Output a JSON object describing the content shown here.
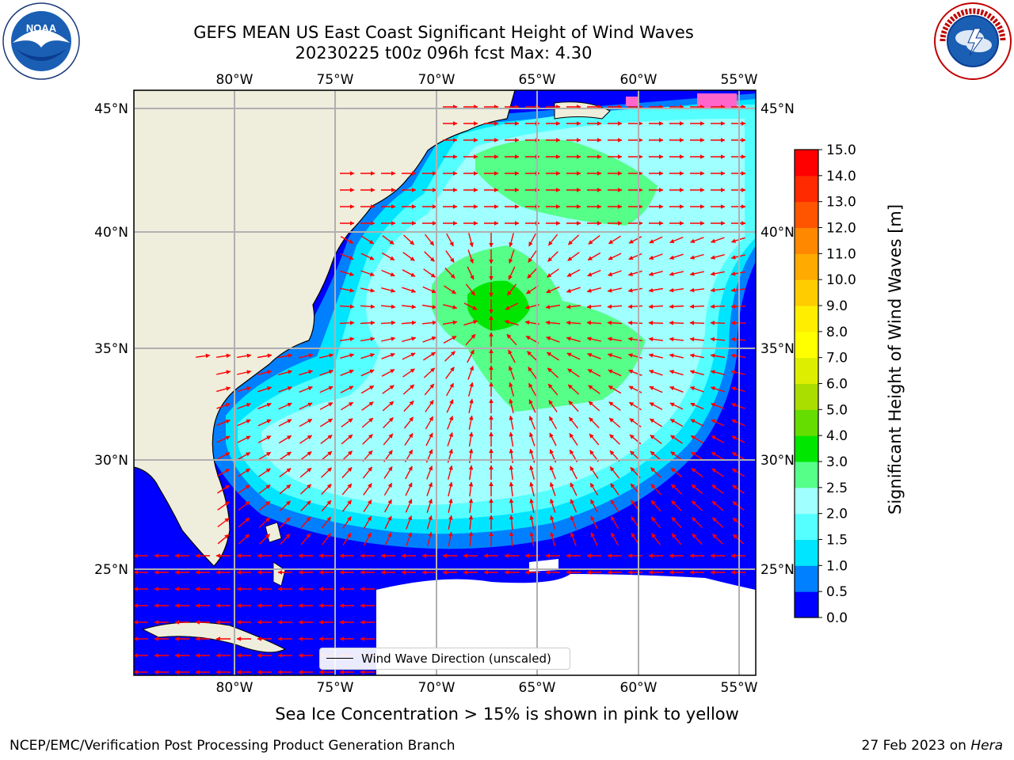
{
  "title": {
    "line1": "GEFS MEAN US East Coast Significant Height of Wind Waves",
    "line2": "20230225 t00z 096h fcst   Max: 4.30"
  },
  "map": {
    "lon_labels": [
      "80°W",
      "75°W",
      "70°W",
      "65°W",
      "60°W",
      "55°W"
    ],
    "lat_labels": [
      "45°N",
      "40°N",
      "35°N",
      "30°N",
      "25°N"
    ],
    "colors": {
      "land": "#efeddc",
      "sea_ice": "#ff66cc",
      "arrows": "#ff0000",
      "gridlines": "#b0b0b0"
    }
  },
  "legend": {
    "label": "Wind Wave Direction (unscaled)"
  },
  "colorbar": {
    "label": "Significant Height of Wind Waves [m]",
    "ticks": [
      "0.0",
      "0.5",
      "1.0",
      "1.5",
      "2.0",
      "2.5",
      "3.0",
      "4.0",
      "5.0",
      "6.0",
      "7.0",
      "8.0",
      "9.0",
      "10.0",
      "11.0",
      "12.0",
      "13.0",
      "14.0",
      "15.0"
    ],
    "colors": [
      "#0000ff",
      "#0080ff",
      "#00e5ff",
      "#55ffff",
      "#a0ffff",
      "#55ff88",
      "#00e600",
      "#66dd00",
      "#aadd00",
      "#ddee00",
      "#ffff00",
      "#ffee00",
      "#ffcc00",
      "#ffaa00",
      "#ff8800",
      "#ff5500",
      "#ff2a00",
      "#ff0000"
    ]
  },
  "caption": "Sea Ice Concentration > 15% is shown in pink to yellow",
  "footer": {
    "left": "NCEP/EMC/Verification Post Processing Product Generation Branch",
    "right_date": "27 Feb 2023 on ",
    "right_machine": "Hera"
  },
  "logos": {
    "noaa_text": "NOAA",
    "nws_text": "NATIONAL WEATHER SERVICE"
  }
}
